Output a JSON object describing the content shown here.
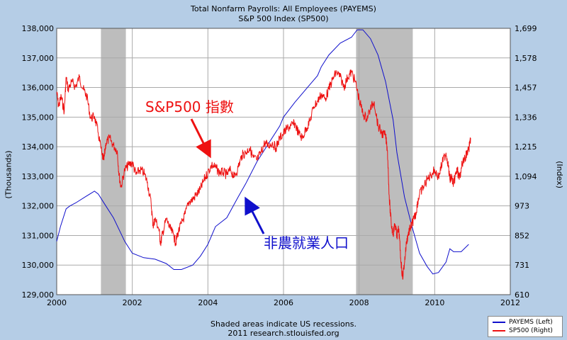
{
  "title_line1": "Total Nonfarm Payrolls: All Employees (PAYEMS)",
  "title_line2": "S&P 500 Index (SP500)",
  "footer_line1": "Shaded areas indicate US recessions.",
  "footer_line2": "2011 research.stlouisfed.org",
  "colors": {
    "payems": "#1010cc",
    "sp500": "#ee1111",
    "recession": "#bdbdbd",
    "grid": "#aaaaaa",
    "annotation_red": "#ee1111",
    "annotation_blue": "#1010cc"
  },
  "annotations": {
    "sp500_label": "S&P500 指數",
    "payems_label": "非農就業人口"
  },
  "chart_data": {
    "type": "line",
    "x_range": [
      2000,
      2012
    ],
    "x_ticks": [
      "2000",
      "2002",
      "2004",
      "2006",
      "2008",
      "2010",
      "2012"
    ],
    "left_axis": {
      "label": "(Thousands)",
      "range": [
        129000,
        138000
      ],
      "ticks": [
        "129,000",
        "130,000",
        "131,000",
        "132,000",
        "133,000",
        "134,000",
        "135,000",
        "136,000",
        "137,000",
        "138,000"
      ]
    },
    "right_axis": {
      "label": "(Index)",
      "range": [
        610,
        1699
      ],
      "ticks": [
        "610",
        "731",
        "852",
        "973",
        "1,094",
        "1,215",
        "1,336",
        "1,457",
        "1,578",
        "1,699"
      ]
    },
    "recessions": [
      [
        2001.17,
        2001.83
      ],
      [
        2007.92,
        2009.42
      ]
    ],
    "grid": true,
    "series": [
      {
        "name": "PAYEMS (Left)",
        "axis": "left",
        "x": [
          2000.0,
          2000.1,
          2000.25,
          2000.35,
          2000.5,
          2000.75,
          2001.0,
          2001.1,
          2001.3,
          2001.5,
          2001.8,
          2002.0,
          2002.3,
          2002.6,
          2002.9,
          2003.1,
          2003.3,
          2003.6,
          2003.8,
          2004.0,
          2004.2,
          2004.5,
          2004.8,
          2005.0,
          2005.3,
          2005.6,
          2005.9,
          2006.0,
          2006.3,
          2006.6,
          2006.9,
          2007.0,
          2007.2,
          2007.5,
          2007.8,
          2007.95,
          2008.1,
          2008.3,
          2008.5,
          2008.7,
          2008.9,
          2009.0,
          2009.2,
          2009.4,
          2009.6,
          2009.8,
          2009.95,
          2010.1,
          2010.3,
          2010.4,
          2010.5,
          2010.7,
          2010.9
        ],
        "values": [
          130800,
          131300,
          131900,
          132000,
          132100,
          132300,
          132500,
          132400,
          132000,
          131600,
          130800,
          130400,
          130250,
          130200,
          130050,
          129850,
          129850,
          130000,
          130300,
          130700,
          131300,
          131600,
          132300,
          132750,
          133500,
          134100,
          134700,
          135000,
          135500,
          135950,
          136400,
          136700,
          137100,
          137500,
          137700,
          137950,
          137950,
          137650,
          137100,
          136200,
          134900,
          133800,
          132300,
          131300,
          130400,
          129950,
          129700,
          129750,
          130100,
          130550,
          130450,
          130450,
          130700
        ]
      },
      {
        "name": "SP500 (Right)",
        "axis": "right",
        "x": [
          2000.0,
          2000.05,
          2000.12,
          2000.2,
          2000.25,
          2000.3,
          2000.4,
          2000.5,
          2000.6,
          2000.7,
          2000.8,
          2000.9,
          2001.0,
          2001.1,
          2001.2,
          2001.25,
          2001.3,
          2001.4,
          2001.5,
          2001.6,
          2001.65,
          2001.7,
          2001.8,
          2001.9,
          2002.0,
          2002.1,
          2002.2,
          2002.3,
          2002.4,
          2002.5,
          2002.55,
          2002.6,
          2002.7,
          2002.75,
          2002.8,
          2002.9,
          2003.0,
          2003.1,
          2003.15,
          2003.2,
          2003.3,
          2003.4,
          2003.5,
          2003.6,
          2003.7,
          2003.8,
          2003.9,
          2004.0,
          2004.1,
          2004.2,
          2004.3,
          2004.4,
          2004.5,
          2004.6,
          2004.7,
          2004.8,
          2004.9,
          2005.0,
          2005.1,
          2005.2,
          2005.3,
          2005.4,
          2005.5,
          2005.6,
          2005.7,
          2005.8,
          2005.9,
          2006.0,
          2006.1,
          2006.2,
          2006.3,
          2006.4,
          2006.5,
          2006.6,
          2006.7,
          2006.8,
          2006.9,
          2007.0,
          2007.1,
          2007.2,
          2007.3,
          2007.4,
          2007.5,
          2007.6,
          2007.7,
          2007.8,
          2007.9,
          2008.0,
          2008.1,
          2008.2,
          2008.3,
          2008.4,
          2008.5,
          2008.6,
          2008.7,
          2008.75,
          2008.8,
          2008.85,
          2008.9,
          2008.95,
          2009.0,
          2009.05,
          2009.1,
          2009.15,
          2009.2,
          2009.25,
          2009.3,
          2009.35,
          2009.4,
          2009.45,
          2009.5,
          2009.55,
          2009.6,
          2009.7,
          2009.8,
          2009.9,
          2010.0,
          2010.1,
          2010.2,
          2010.3,
          2010.35,
          2010.4,
          2010.45,
          2010.5,
          2010.55,
          2010.6,
          2010.65,
          2010.7,
          2010.8,
          2010.9,
          2010.95
        ],
        "values": [
          1440,
          1380,
          1420,
          1360,
          1500,
          1450,
          1480,
          1460,
          1500,
          1450,
          1420,
          1330,
          1340,
          1270,
          1180,
          1160,
          1230,
          1250,
          1220,
          1200,
          1100,
          1050,
          1120,
          1140,
          1150,
          1100,
          1120,
          1110,
          1070,
          980,
          890,
          920,
          880,
          820,
          860,
          920,
          880,
          850,
          820,
          860,
          900,
          940,
          990,
          1000,
          1020,
          1040,
          1080,
          1110,
          1140,
          1130,
          1110,
          1110,
          1100,
          1120,
          1090,
          1130,
          1180,
          1190,
          1210,
          1170,
          1160,
          1190,
          1230,
          1220,
          1230,
          1210,
          1250,
          1270,
          1290,
          1300,
          1310,
          1270,
          1250,
          1290,
          1320,
          1380,
          1400,
          1430,
          1410,
          1450,
          1490,
          1520,
          1500,
          1460,
          1500,
          1520,
          1480,
          1410,
          1350,
          1330,
          1370,
          1400,
          1300,
          1270,
          1260,
          1200,
          1000,
          900,
          860,
          900,
          850,
          880,
          760,
          680,
          740,
          820,
          860,
          880,
          900,
          920,
          940,
          990,
          1020,
          1050,
          1080,
          1100,
          1120,
          1090,
          1150,
          1190,
          1150,
          1080,
          1090,
          1060,
          1100,
          1120,
          1080,
          1130,
          1170,
          1200,
          1250
        ]
      }
    ]
  }
}
